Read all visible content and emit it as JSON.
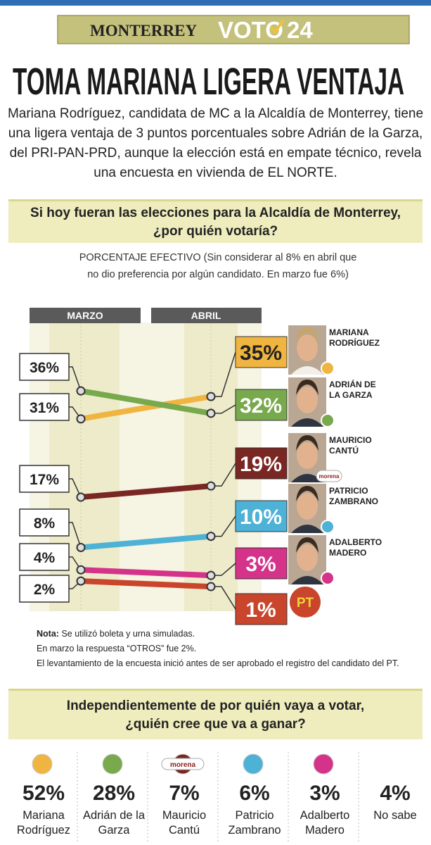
{
  "header": {
    "city": "MONTERREY",
    "logo": "VOTO",
    "logo_number": "24"
  },
  "headline": "TOMA MARIANA LIGERA VENTAJA",
  "intro": "Mariana Rodríguez, candidata de MC a la Alcaldía de Monterrey, tiene una ligera ventaja de 3 puntos porcentuales sobre Adrián de la Garza, del PRI-PAN-PRD, aunque la elección está en empate técnico, revela una encuesta en vivienda de EL NORTE.",
  "chart_data": [
    {
      "type": "slope",
      "title": "Si hoy fueran las elecciones para la Alcaldía de Monterrey, ¿por quién votaría?",
      "subtitle": "PORCENTAJE EFECTIVO (Sin considerar al 8% en abril que no dio preferencia por algún candidato. En marzo fue 6%)",
      "categories": [
        "MARZO",
        "ABRIL"
      ],
      "series": [
        {
          "name": "MARIANA RODRÍGUEZ",
          "color": "#f0b540",
          "values": [
            31,
            35
          ],
          "value_labels": [
            "31%",
            "35%"
          ]
        },
        {
          "name": "ADRIÁN DE LA GARZA",
          "color": "#78a94c",
          "values": [
            36,
            32
          ],
          "value_labels": [
            "36%",
            "32%"
          ]
        },
        {
          "name": "MAURICIO CANTÚ",
          "party": "morena",
          "color": "#7a2622",
          "values": [
            17,
            19
          ],
          "value_labels": [
            "17%",
            "19%"
          ]
        },
        {
          "name": "PATRICIO ZAMBRANO",
          "color": "#4db2d6",
          "values": [
            8,
            10
          ],
          "value_labels": [
            "8%",
            "10%"
          ]
        },
        {
          "name": "ADALBERTO MADERO",
          "color": "#d43389",
          "values": [
            4,
            3
          ],
          "value_labels": [
            "4%",
            "3%"
          ]
        },
        {
          "name": "PT",
          "color": "#c9452b",
          "values": [
            2,
            1
          ],
          "value_labels": [
            "2%",
            "1%"
          ]
        }
      ],
      "notes": {
        "label": "Nota:",
        "lines": [
          "Se utilizó boleta y urna simuladas.",
          "En marzo la respuesta “OTROS” fue 2%.",
          "El levantamiento de la encuesta inició antes de ser aprobado el registro del candidato del PT."
        ]
      }
    },
    {
      "type": "stat",
      "title": "Independientemente de por quién vaya a votar, ¿quién cree que va a ganar?",
      "categories": [
        "Mariana Rodríguez",
        "Adrián de la Garza",
        "Mauricio Cantú",
        "Patricio Zambrano",
        "Adalberto Madero",
        "No sabe"
      ],
      "colors": [
        "#f0b540",
        "#78a94c",
        "#7a2622",
        "#4db2d6",
        "#d43389",
        "#ffffff"
      ],
      "values": [
        52,
        28,
        7,
        6,
        3,
        4
      ],
      "value_labels": [
        "52%",
        "28%",
        "7%",
        "6%",
        "3%",
        "4%"
      ]
    }
  ]
}
